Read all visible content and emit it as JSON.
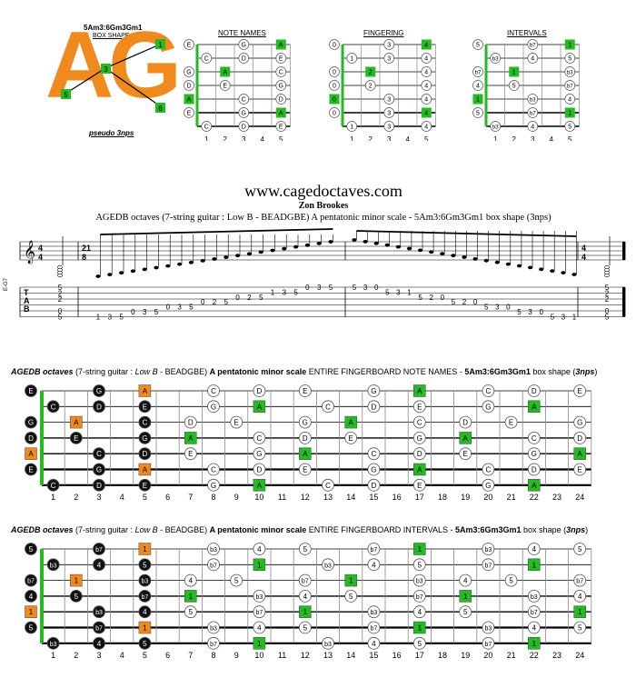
{
  "header": {
    "shape_code": "5Am3:6Gm3Gm1",
    "shape_sub": "BOX SHAPE",
    "logo": "AG",
    "pseudo": "pseudo 3nps",
    "logo_markers": [
      "1",
      "3",
      "5",
      "6"
    ]
  },
  "mini": {
    "titles": [
      "NOTE NAMES",
      "FINGERING",
      "INTERVALS"
    ],
    "fret_labels": [
      "1",
      "2",
      "3",
      "4",
      "5"
    ]
  },
  "title_block": {
    "site": "www.cagedoctaves.com",
    "author": "Zon Brookes",
    "desc": "AGEDB octaves (7-string guitar : Low B - BEADGBE) A pentatonic minor scale - 5Am3:6Gm3Gm1 box shape (3nps)",
    "left_label": "E-G7",
    "tab_letters": [
      "T",
      "A",
      "B"
    ],
    "time_sig": "4/4",
    "time_mid": "21/8",
    "tab_start": [
      "5",
      "2",
      "2",
      "0",
      "5"
    ],
    "tab_end": [
      "5",
      "2",
      "2",
      "0",
      "5"
    ],
    "run1": [
      "1",
      "3",
      "5",
      "0",
      "3",
      "5",
      "0",
      "3",
      "5",
      "0",
      "2",
      "5",
      "0",
      "2",
      "5",
      "1",
      "3",
      "5",
      "0",
      "3",
      "5"
    ],
    "run2": [
      "5",
      "3",
      "0",
      "5",
      "3",
      "1",
      "5",
      "2",
      "0",
      "5",
      "2",
      "0",
      "5",
      "3",
      "0",
      "5",
      "3",
      "0",
      "5",
      "3",
      "1"
    ]
  },
  "board1": {
    "title_bold": "AGEDB octaves",
    "title_rest": " (7-string guitar : ",
    "title_it": "Low B",
    "title_rest2": " - BEADGBE) ",
    "title_bold2": "A pentatonic minor scale",
    "title_rest3": " ENTIRE FINGERBOARD NOTE NAMES - ",
    "title_bold3": "5Am3:6Gm3Gm1",
    "title_rest4": " box shape (",
    "title_bold4": "3nps",
    "title_rest5": ")"
  },
  "board2": {
    "title_bold": "AGEDB octaves",
    "title_rest": " (7-string guitar : ",
    "title_it": "Low B",
    "title_rest2": " - BEADGBE) ",
    "title_bold2": "A pentatonic minor scale",
    "title_rest3": " ENTIRE FINGERBOARD INTERVALS - ",
    "title_bold3": "5Am3:6Gm3Gm1",
    "title_rest4": " box shape (",
    "title_bold4": "3nps",
    "title_rest5": ")"
  },
  "fret_numbers": [
    "1",
    "2",
    "3",
    "4",
    "5",
    "6",
    "7",
    "8",
    "9",
    "10",
    "11",
    "12",
    "13",
    "14",
    "15",
    "16",
    "17",
    "18",
    "19",
    "20",
    "21",
    "22",
    "23",
    "24"
  ],
  "colors": {
    "green": "#22bb22",
    "orange": "#f08a1c"
  }
}
